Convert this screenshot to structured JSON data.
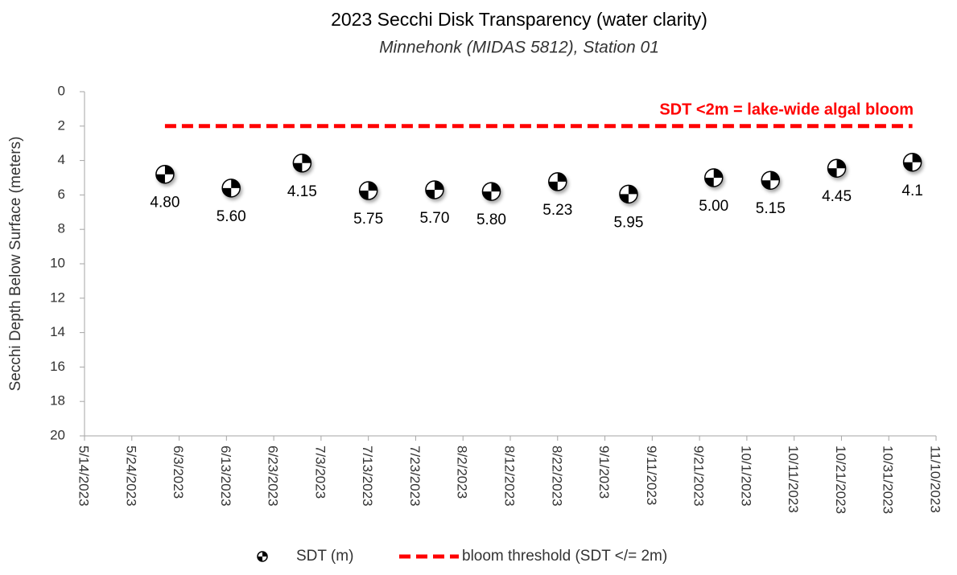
{
  "chart_data": {
    "type": "scatter",
    "title": "2023 Secchi Disk Transparency (water clarity)",
    "subtitle": "Minnehonk (MIDAS 5812), Station 01",
    "y_label": "Secchi Depth Below Surface (meters)",
    "annotation": "SDT <2m = lake-wide algal bloom",
    "y_inverted": true,
    "grid": false,
    "legend": "bottom",
    "xlim": [
      "2023-05-14",
      "2023-11-10"
    ],
    "xticks": [
      {
        "value": "2023-05-14",
        "label": "5/14/2023"
      },
      {
        "value": "2023-05-24",
        "label": "5/24/2023"
      },
      {
        "value": "2023-06-03",
        "label": "6/3/2023"
      },
      {
        "value": "2023-06-13",
        "label": "6/13/2023"
      },
      {
        "value": "2023-06-23",
        "label": "6/23/2023"
      },
      {
        "value": "2023-07-03",
        "label": "7/3/2023"
      },
      {
        "value": "2023-07-13",
        "label": "7/13/2023"
      },
      {
        "value": "2023-07-23",
        "label": "7/23/2023"
      },
      {
        "value": "2023-08-02",
        "label": "8/2/2023"
      },
      {
        "value": "2023-08-12",
        "label": "8/12/2023"
      },
      {
        "value": "2023-08-22",
        "label": "8/22/2023"
      },
      {
        "value": "2023-09-01",
        "label": "9/1/2023"
      },
      {
        "value": "2023-09-11",
        "label": "9/11/2023"
      },
      {
        "value": "2023-09-21",
        "label": "9/21/2023"
      },
      {
        "value": "2023-10-01",
        "label": "10/1/2023"
      },
      {
        "value": "2023-10-11",
        "label": "10/11/2023"
      },
      {
        "value": "2023-10-21",
        "label": "10/21/2023"
      },
      {
        "value": "2023-10-31",
        "label": "10/31/2023"
      },
      {
        "value": "2023-11-10",
        "label": "11/10/2023"
      }
    ],
    "ylim": [
      0,
      20
    ],
    "yticks": [
      0,
      2,
      4,
      6,
      8,
      10,
      12,
      14,
      16,
      18,
      20
    ],
    "series": [
      {
        "name": "SDT (m)",
        "kind": "disk",
        "color": "#000000",
        "x": [
          "2023-05-31",
          "2023-06-14",
          "2023-06-29",
          "2023-07-13",
          "2023-07-27",
          "2023-08-08",
          "2023-08-22",
          "2023-09-06",
          "2023-09-24",
          "2023-10-06",
          "2023-10-20",
          "2023-11-05"
        ],
        "values": [
          4.8,
          5.6,
          4.15,
          5.75,
          5.7,
          5.8,
          5.23,
          5.95,
          5.0,
          5.15,
          4.45,
          4.1
        ],
        "value_labels": [
          "4.80",
          "5.60",
          "4.15",
          "5.75",
          "5.70",
          "5.80",
          "5.23",
          "5.95",
          "5.00",
          "5.15",
          "4.45",
          "4.1"
        ]
      },
      {
        "name": "bloom threshold (SDT </= 2m)",
        "kind": "dashed-line",
        "color": "#ff0000",
        "x": [
          "2023-05-31",
          "2023-11-05"
        ],
        "values": [
          2,
          2
        ]
      }
    ]
  }
}
